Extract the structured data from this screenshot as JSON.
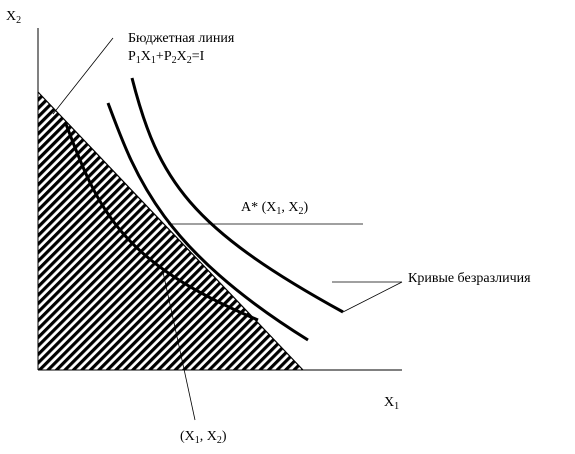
{
  "axes": {
    "y_label": "X",
    "y_sub": "2",
    "x_label": "X",
    "x_sub": "1"
  },
  "budget_line": {
    "title": "Бюджетная линия",
    "eq_p1": "P",
    "eq_1a": "1",
    "eq_x1": "X",
    "eq_1b": "1",
    "eq_plus": "+P",
    "eq_2a": "2",
    "eq_x2": "X",
    "eq_2b": "2",
    "eq_rest": "=I"
  },
  "optimum": {
    "prefix": "A* (X",
    "sub1": "1",
    "mid": ", X",
    "sub2": "2",
    "suffix": ")"
  },
  "indifference_curves": {
    "label": "Кривые безразличия"
  },
  "feasible_point": {
    "prefix": "(X",
    "sub1": "1",
    "mid": ", X",
    "sub2": "2",
    "suffix": ")"
  },
  "colors": {
    "line": "#000000",
    "hatch": "#000000",
    "background": "#ffffff"
  }
}
